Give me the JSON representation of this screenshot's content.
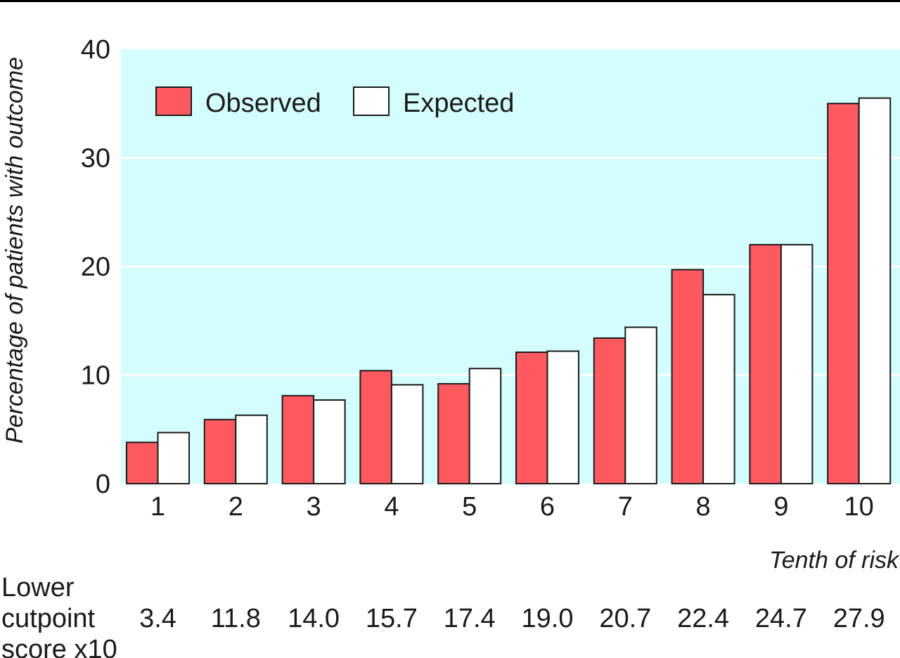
{
  "chart_data": {
    "type": "bar",
    "categories": [
      "1",
      "2",
      "3",
      "4",
      "5",
      "6",
      "7",
      "8",
      "9",
      "10"
    ],
    "series": [
      {
        "name": "Observed",
        "values": [
          3.8,
          5.9,
          8.1,
          10.4,
          9.2,
          12.1,
          13.4,
          19.7,
          22.0,
          35.0
        ]
      },
      {
        "name": "Expected",
        "values": [
          4.7,
          6.3,
          7.7,
          9.1,
          10.6,
          12.2,
          14.4,
          17.4,
          22.0,
          35.5
        ]
      }
    ],
    "ylabel": "Percentage of patients with outcome",
    "xlabel": "Tenth of risk",
    "ylim": [
      0,
      40
    ],
    "yticks": [
      "0",
      "10",
      "20",
      "30",
      "40"
    ],
    "grid": true,
    "legend_position": "top-left",
    "colors": {
      "Observed": "#ff5a5f",
      "Expected": "#ffffff",
      "plot_background": "#d4fdfd",
      "gridline": "#ffffff"
    },
    "cutpoint_label": [
      "Lower",
      "cutpoint",
      "score x10"
    ],
    "cutpoints": [
      "3.4",
      "11.8",
      "14.0",
      "15.7",
      "17.4",
      "19.0",
      "20.7",
      "22.4",
      "24.7",
      "27.9"
    ]
  }
}
